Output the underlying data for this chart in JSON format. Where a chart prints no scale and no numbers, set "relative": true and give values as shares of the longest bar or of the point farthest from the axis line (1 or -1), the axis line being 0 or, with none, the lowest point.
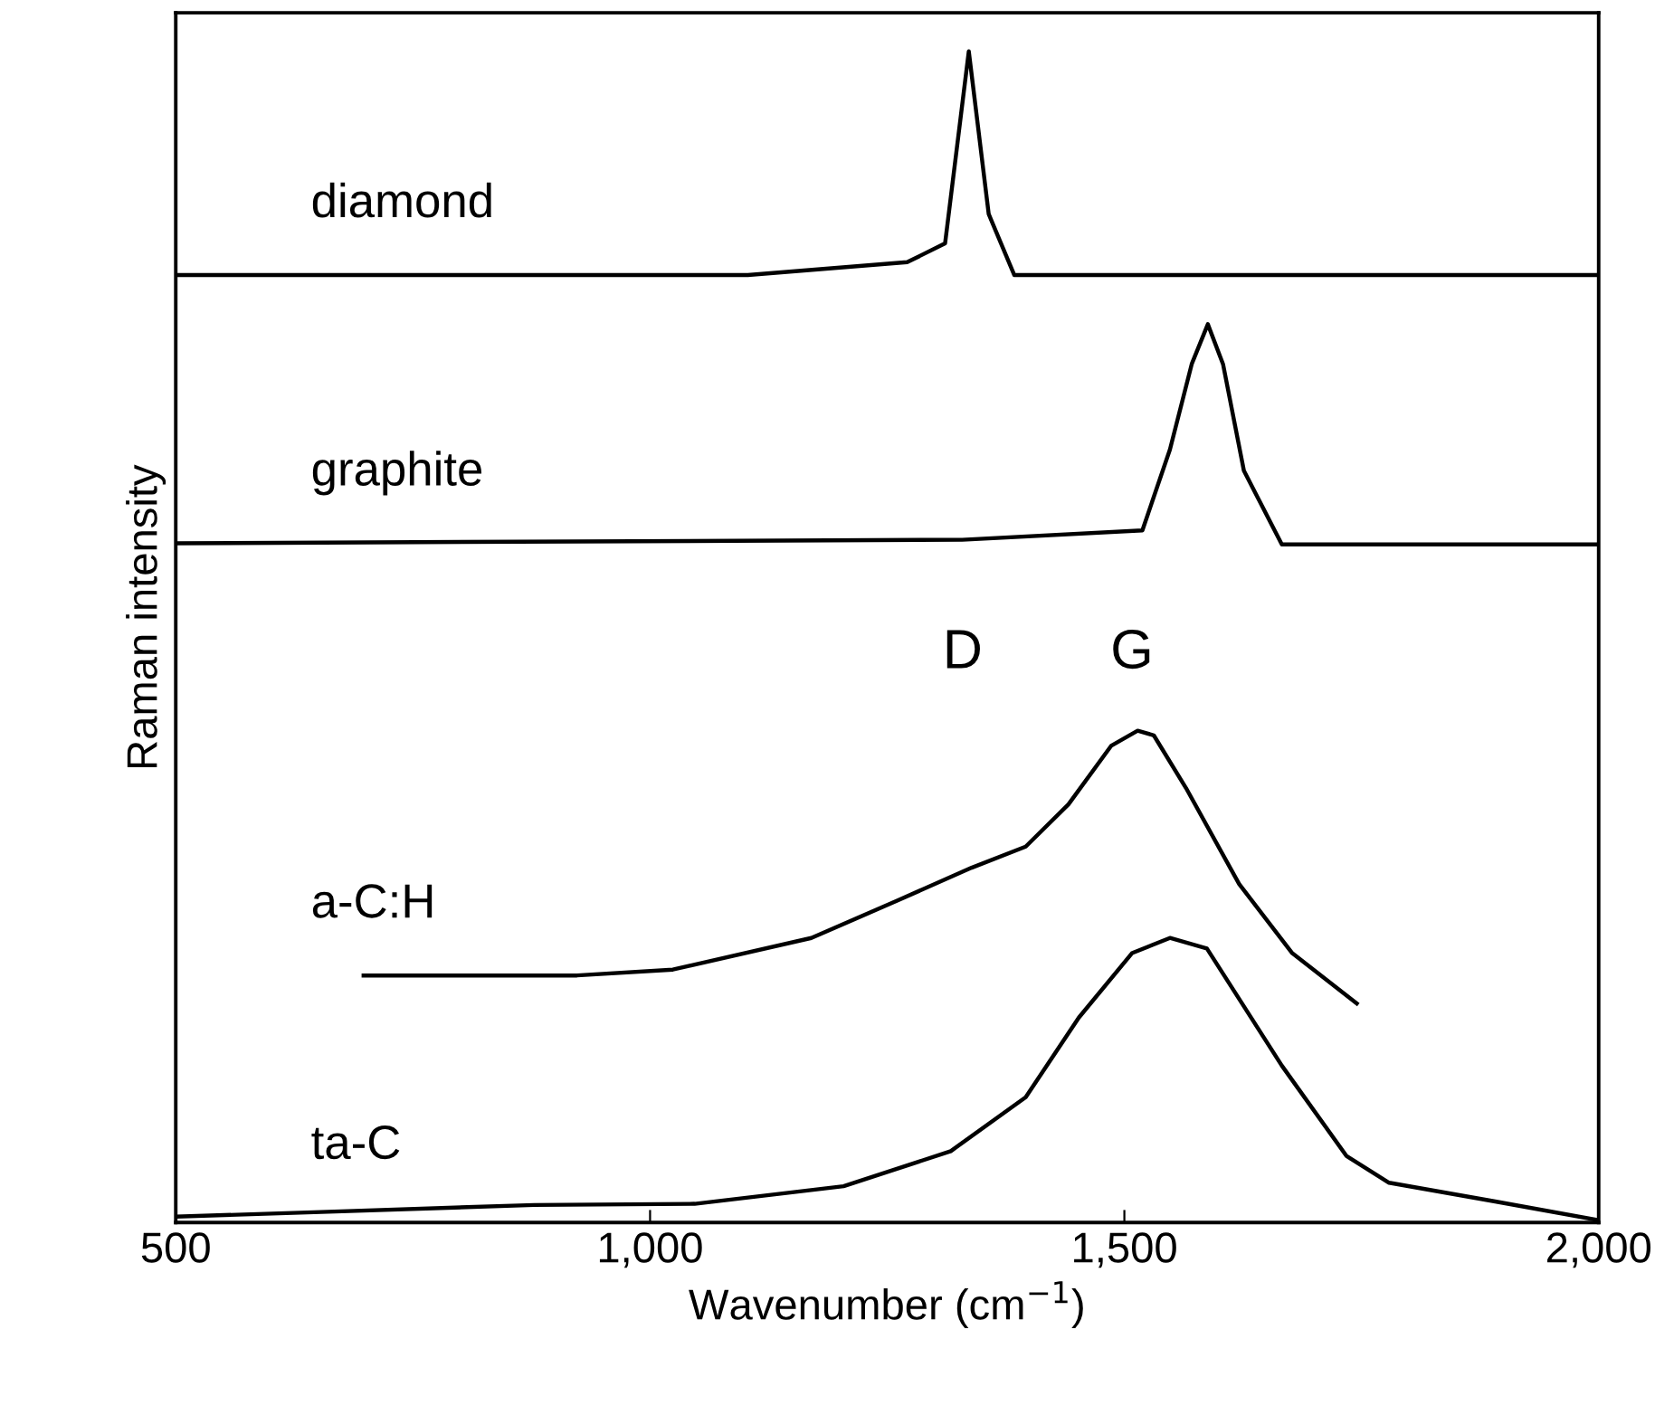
{
  "chart_data": {
    "type": "line",
    "relative": true,
    "xlabel": "Wavenumber (cm$^{−1}$)",
    "ylabel": "Raman intensity",
    "xlim": [
      500,
      2000
    ],
    "xticks": [
      500,
      {
        "value": 1000,
        "label": "1,000"
      },
      {
        "value": 1500,
        "label": "1,500"
      },
      {
        "value": 2000,
        "label": "2,000"
      }
    ],
    "grid": false,
    "marker": "none",
    "line_style": "solid",
    "series": [
      {
        "name": "diamond",
        "color": "#000000",
        "x": [
          500,
          1103,
          1271,
          1311,
          1336,
          1357,
          1384,
          2000
        ],
        "values": [
          0.809,
          0.809,
          0.82,
          0.836,
          1.0,
          0.861,
          0.809,
          0.809
        ]
      },
      {
        "name": "graphite",
        "color": "#000000",
        "x": [
          500,
          1329,
          1519,
          1548,
          1571,
          1588,
          1604,
          1626,
          1666,
          2000
        ],
        "values": [
          0.58,
          0.583,
          0.591,
          0.66,
          0.733,
          0.767,
          0.733,
          0.642,
          0.579,
          0.579
        ]
      },
      {
        "name": "a-C:H",
        "color": "#000000",
        "x": [
          698,
          923,
          1024,
          1170,
          1261,
          1339,
          1396,
          1441,
          1486,
          1514,
          1531,
          1565,
          1621,
          1677,
          1745
        ],
        "values": [
          0.211,
          0.211,
          0.216,
          0.243,
          0.275,
          0.303,
          0.321,
          0.357,
          0.407,
          0.42,
          0.416,
          0.371,
          0.289,
          0.23,
          0.187
        ]
      },
      {
        "name": "ta-C",
        "color": "#000000",
        "x": [
          500,
          653,
          878,
          1047,
          1204,
          1317,
          1396,
          1452,
          1508,
          1548,
          1587,
          1666,
          1734,
          1779,
          1891,
          2000
        ],
        "values": [
          0.005,
          0.009,
          0.015,
          0.016,
          0.031,
          0.061,
          0.107,
          0.175,
          0.23,
          0.243,
          0.234,
          0.134,
          0.057,
          0.034,
          0.018,
          0.002
        ]
      }
    ],
    "annotations": [
      "D",
      "G"
    ]
  }
}
